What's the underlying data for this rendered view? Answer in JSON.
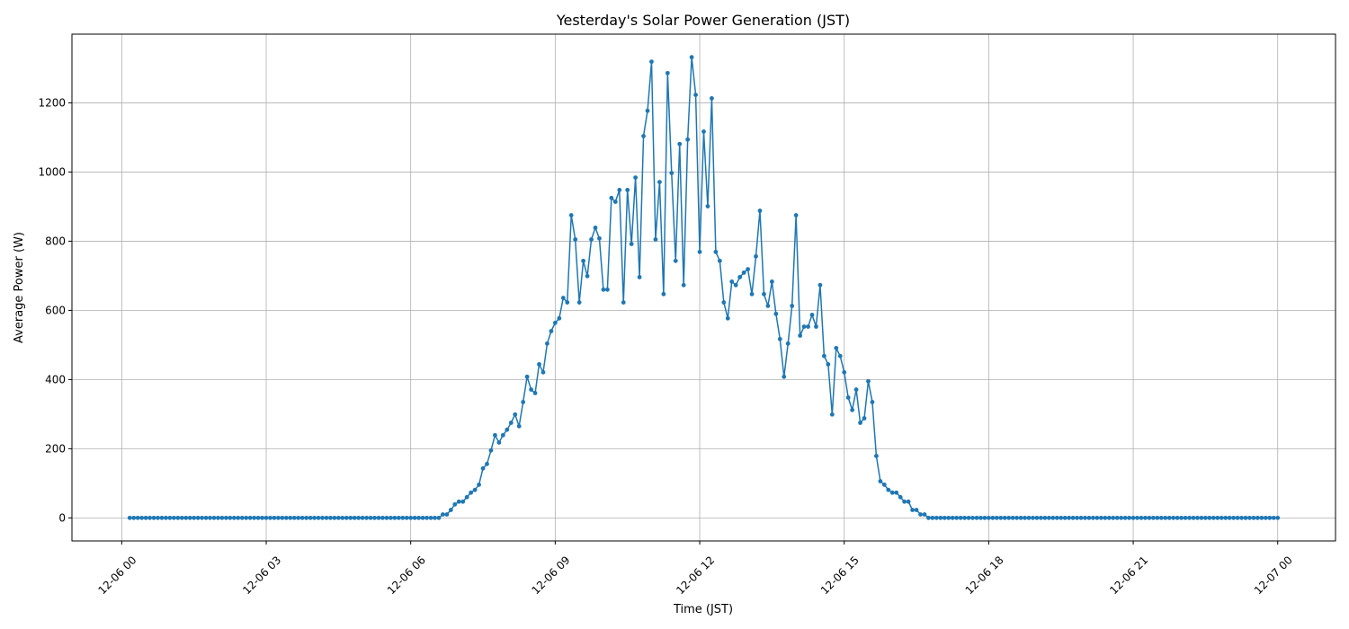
{
  "chart_data": {
    "type": "line",
    "title": "Yesterday's Solar Power Generation (JST)",
    "x_label": "Time (JST)",
    "y_label": "Average Power (W)",
    "x": [
      "12-06 00:10",
      "12-06 00:15",
      "12-06 00:20",
      "12-06 00:25",
      "12-06 00:30",
      "12-06 00:35",
      "12-06 00:40",
      "12-06 00:45",
      "12-06 00:50",
      "12-06 00:55",
      "12-06 01:00",
      "12-06 01:05",
      "12-06 01:10",
      "12-06 01:15",
      "12-06 01:20",
      "12-06 01:25",
      "12-06 01:30",
      "12-06 01:35",
      "12-06 01:40",
      "12-06 01:45",
      "12-06 01:50",
      "12-06 01:55",
      "12-06 02:00",
      "12-06 02:05",
      "12-06 02:10",
      "12-06 02:15",
      "12-06 02:20",
      "12-06 02:25",
      "12-06 02:30",
      "12-06 02:35",
      "12-06 02:40",
      "12-06 02:45",
      "12-06 02:50",
      "12-06 02:55",
      "12-06 03:00",
      "12-06 03:05",
      "12-06 03:10",
      "12-06 03:15",
      "12-06 03:20",
      "12-06 03:25",
      "12-06 03:30",
      "12-06 03:35",
      "12-06 03:40",
      "12-06 03:45",
      "12-06 03:50",
      "12-06 03:55",
      "12-06 04:00",
      "12-06 04:05",
      "12-06 04:10",
      "12-06 04:15",
      "12-06 04:20",
      "12-06 04:25",
      "12-06 04:30",
      "12-06 04:35",
      "12-06 04:40",
      "12-06 04:45",
      "12-06 04:50",
      "12-06 04:55",
      "12-06 05:00",
      "12-06 05:05",
      "12-06 05:10",
      "12-06 05:15",
      "12-06 05:20",
      "12-06 05:25",
      "12-06 05:30",
      "12-06 05:35",
      "12-06 05:40",
      "12-06 05:45",
      "12-06 05:50",
      "12-06 05:55",
      "12-06 06:00",
      "12-06 06:05",
      "12-06 06:10",
      "12-06 06:15",
      "12-06 06:20",
      "12-06 06:25",
      "12-06 06:30",
      "12-06 06:35",
      "12-06 06:40",
      "12-06 06:45",
      "12-06 06:50",
      "12-06 06:55",
      "12-06 07:00",
      "12-06 07:05",
      "12-06 07:10",
      "12-06 07:15",
      "12-06 07:20",
      "12-06 07:25",
      "12-06 07:30",
      "12-06 07:35",
      "12-06 07:40",
      "12-06 07:45",
      "12-06 07:50",
      "12-06 07:55",
      "12-06 08:00",
      "12-06 08:05",
      "12-06 08:10",
      "12-06 08:15",
      "12-06 08:20",
      "12-06 08:25",
      "12-06 08:30",
      "12-06 08:35",
      "12-06 08:40",
      "12-06 08:45",
      "12-06 08:50",
      "12-06 08:55",
      "12-06 09:00",
      "12-06 09:05",
      "12-06 09:10",
      "12-06 09:15",
      "12-06 09:20",
      "12-06 09:25",
      "12-06 09:30",
      "12-06 09:35",
      "12-06 09:40",
      "12-06 09:45",
      "12-06 09:50",
      "12-06 09:55",
      "12-06 10:00",
      "12-06 10:05",
      "12-06 10:10",
      "12-06 10:15",
      "12-06 10:20",
      "12-06 10:25",
      "12-06 10:30",
      "12-06 10:35",
      "12-06 10:40",
      "12-06 10:45",
      "12-06 10:50",
      "12-06 10:55",
      "12-06 11:00",
      "12-06 11:05",
      "12-06 11:10",
      "12-06 11:15",
      "12-06 11:20",
      "12-06 11:25",
      "12-06 11:30",
      "12-06 11:35",
      "12-06 11:40",
      "12-06 11:45",
      "12-06 11:50",
      "12-06 11:55",
      "12-06 12:00",
      "12-06 12:05",
      "12-06 12:10",
      "12-06 12:15",
      "12-06 12:20",
      "12-06 12:25",
      "12-06 12:30",
      "12-06 12:35",
      "12-06 12:40",
      "12-06 12:45",
      "12-06 12:50",
      "12-06 12:55",
      "12-06 13:00",
      "12-06 13:05",
      "12-06 13:10",
      "12-06 13:15",
      "12-06 13:20",
      "12-06 13:25",
      "12-06 13:30",
      "12-06 13:35",
      "12-06 13:40",
      "12-06 13:45",
      "12-06 13:50",
      "12-06 13:55",
      "12-06 14:00",
      "12-06 14:05",
      "12-06 14:10",
      "12-06 14:15",
      "12-06 14:20",
      "12-06 14:25",
      "12-06 14:30",
      "12-06 14:35",
      "12-06 14:40",
      "12-06 14:45",
      "12-06 14:50",
      "12-06 14:55",
      "12-06 15:00",
      "12-06 15:05",
      "12-06 15:10",
      "12-06 15:15",
      "12-06 15:20",
      "12-06 15:25",
      "12-06 15:30",
      "12-06 15:35",
      "12-06 15:40",
      "12-06 15:45",
      "12-06 15:50",
      "12-06 15:55",
      "12-06 16:00",
      "12-06 16:05",
      "12-06 16:10",
      "12-06 16:15",
      "12-06 16:20",
      "12-06 16:25",
      "12-06 16:30",
      "12-06 16:35",
      "12-06 16:40",
      "12-06 16:45",
      "12-06 16:50",
      "12-06 16:55",
      "12-06 17:00",
      "12-06 17:05",
      "12-06 17:10",
      "12-06 17:15",
      "12-06 17:20",
      "12-06 17:25",
      "12-06 17:30",
      "12-06 17:35",
      "12-06 17:40",
      "12-06 17:45",
      "12-06 17:50",
      "12-06 17:55",
      "12-06 18:00",
      "12-06 18:05",
      "12-06 18:10",
      "12-06 18:15",
      "12-06 18:20",
      "12-06 18:25",
      "12-06 18:30",
      "12-06 18:35",
      "12-06 18:40",
      "12-06 18:45",
      "12-06 18:50",
      "12-06 18:55",
      "12-06 19:00",
      "12-06 19:05",
      "12-06 19:10",
      "12-06 19:15",
      "12-06 19:20",
      "12-06 19:25",
      "12-06 19:30",
      "12-06 19:35",
      "12-06 19:40",
      "12-06 19:45",
      "12-06 19:50",
      "12-06 19:55",
      "12-06 20:00",
      "12-06 20:05",
      "12-06 20:10",
      "12-06 20:15",
      "12-06 20:20",
      "12-06 20:25",
      "12-06 20:30",
      "12-06 20:35",
      "12-06 20:40",
      "12-06 20:45",
      "12-06 20:50",
      "12-06 20:55",
      "12-06 21:00",
      "12-06 21:05",
      "12-06 21:10",
      "12-06 21:15",
      "12-06 21:20",
      "12-06 21:25",
      "12-06 21:30",
      "12-06 21:35",
      "12-06 21:40",
      "12-06 21:45",
      "12-06 21:50",
      "12-06 21:55",
      "12-06 22:00",
      "12-06 22:05",
      "12-06 22:10",
      "12-06 22:15",
      "12-06 22:20",
      "12-06 22:25",
      "12-06 22:30",
      "12-06 22:35",
      "12-06 22:40",
      "12-06 22:45",
      "12-06 22:50",
      "12-06 22:55",
      "12-06 23:00",
      "12-06 23:05",
      "12-06 23:10",
      "12-06 23:15",
      "12-06 23:20",
      "12-06 23:25",
      "12-06 23:30",
      "12-06 23:35",
      "12-06 23:40",
      "12-06 23:45",
      "12-06 23:50",
      "12-06 23:55",
      "12-07 00:00"
    ],
    "series": [
      {
        "color": "#1f77b4",
        "values": [
          0,
          0,
          0,
          0,
          0,
          0,
          0,
          0,
          0,
          0,
          0,
          0,
          0,
          0,
          0,
          0,
          0,
          0,
          0,
          0,
          0,
          0,
          0,
          0,
          0,
          0,
          0,
          0,
          0,
          0,
          0,
          0,
          0,
          0,
          0,
          0,
          0,
          0,
          0,
          0,
          0,
          0,
          0,
          0,
          0,
          0,
          0,
          0,
          0,
          0,
          0,
          0,
          0,
          0,
          0,
          0,
          0,
          0,
          0,
          0,
          0,
          0,
          0,
          0,
          0,
          0,
          0,
          0,
          0,
          0,
          0,
          0,
          0,
          0,
          0,
          0,
          0,
          0,
          10,
          10,
          23,
          39,
          47,
          47,
          60,
          73,
          81,
          96,
          143,
          156,
          195,
          239,
          218,
          239,
          255,
          275,
          299,
          265,
          335,
          408,
          371,
          361,
          444,
          421,
          504,
          540,
          564,
          577,
          636,
          623,
          875,
          805,
          623,
          743,
          699,
          805,
          839,
          808,
          660,
          660,
          925,
          914,
          948,
          623,
          948,
          792,
          984,
          696,
          1104,
          1177,
          1319,
          805,
          971,
          647,
          1286,
          997,
          743,
          1081,
          673,
          1094,
          1332,
          1223,
          769,
          1117,
          901,
          1213,
          769,
          743,
          623,
          577,
          683,
          673,
          696,
          709,
          719,
          647,
          756,
          888,
          647,
          613,
          683,
          590,
          517,
          408,
          504,
          613,
          875,
          527,
          553,
          553,
          587,
          553,
          673,
          468,
          444,
          299,
          491,
          468,
          421,
          348,
          312,
          371,
          275,
          288,
          395,
          335,
          179,
          106,
          96,
          81,
          73,
          73,
          60,
          47,
          47,
          23,
          23,
          10,
          10,
          0,
          0,
          0,
          0,
          0,
          0,
          0,
          0,
          0,
          0,
          0,
          0,
          0,
          0,
          0,
          0,
          0,
          0,
          0,
          0,
          0,
          0,
          0,
          0,
          0,
          0,
          0,
          0,
          0,
          0,
          0,
          0,
          0,
          0,
          0,
          0,
          0,
          0,
          0,
          0,
          0,
          0,
          0,
          0,
          0,
          0,
          0,
          0,
          0,
          0,
          0,
          0,
          0,
          0,
          0,
          0,
          0,
          0,
          0,
          0,
          0,
          0,
          0,
          0,
          0,
          0,
          0,
          0,
          0,
          0,
          0,
          0,
          0,
          0,
          0,
          0,
          0,
          0,
          0,
          0,
          0,
          0,
          0,
          0,
          0,
          0,
          0,
          0
        ]
      }
    ],
    "xlim": [
      "12-05 22:58",
      "12-07 01:12"
    ],
    "xticks": [
      "12-06 00",
      "12-06 03",
      "12-06 06",
      "12-06 09",
      "12-06 12",
      "12-06 15",
      "12-06 18",
      "12-06 21",
      "12-07 00"
    ],
    "ylim": [
      -66.6,
      1398.6
    ],
    "yticks": [
      0,
      200,
      400,
      600,
      800,
      1000,
      1200
    ],
    "grid": true,
    "marker": true
  }
}
